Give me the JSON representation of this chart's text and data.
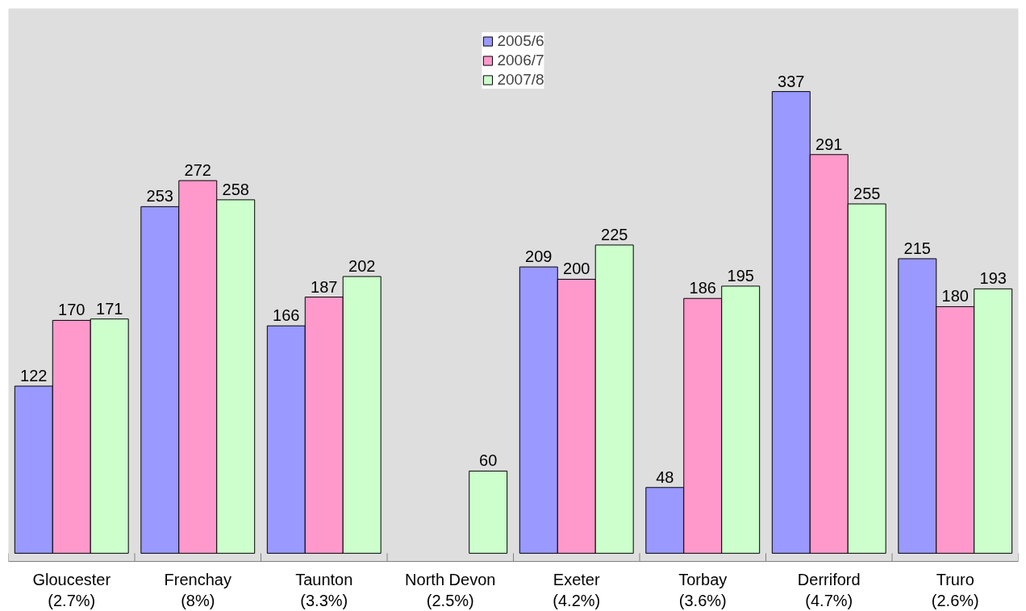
{
  "chart_data": {
    "type": "bar",
    "categories": [
      "Gloucester\n(2.7%)",
      "Frenchay\n(8%)",
      "Taunton\n(3.3%)",
      "North Devon\n(2.5%)",
      "Exeter\n(4.2%)",
      "Torbay\n(3.6%)",
      "Derriford\n(4.7%)",
      "Truro\n(2.6%)"
    ],
    "series": [
      {
        "name": "2005/6",
        "color": "#9999ff",
        "values": [
          122,
          253,
          166,
          null,
          209,
          48,
          337,
          215
        ]
      },
      {
        "name": "2006/7",
        "color": "#ff99cc",
        "values": [
          170,
          272,
          187,
          null,
          200,
          186,
          291,
          180
        ]
      },
      {
        "name": "2007/8",
        "color": "#ccffcc",
        "values": [
          171,
          258,
          202,
          60,
          225,
          195,
          255,
          193
        ]
      }
    ],
    "data_labels": true,
    "legend": "top",
    "grid": false
  }
}
